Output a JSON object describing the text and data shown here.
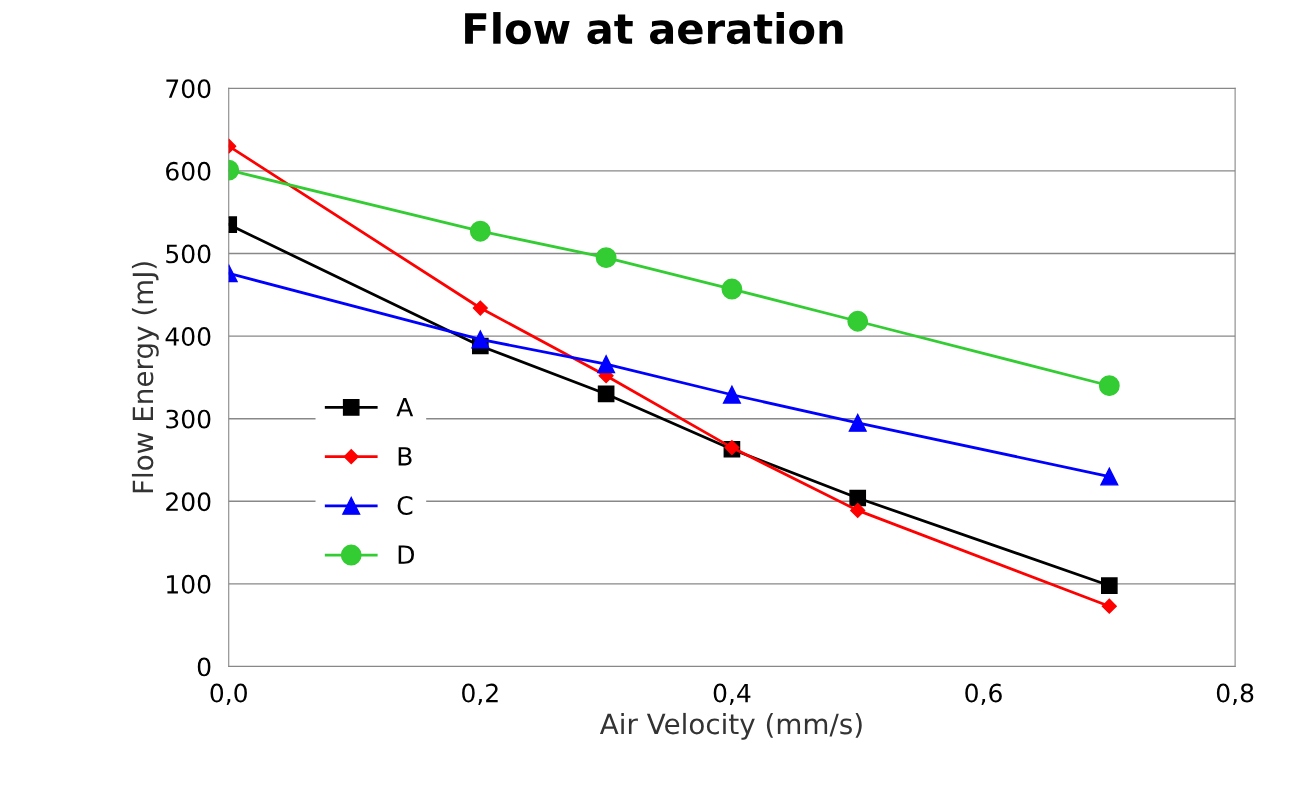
{
  "chart_data": {
    "type": "line",
    "title": "Flow at aeration",
    "xlabel": "Air Velocity (mm/s)",
    "ylabel": "Flow Energy (mJ)",
    "x": [
      0.0,
      0.2,
      0.3,
      0.4,
      0.5,
      0.7
    ],
    "series": [
      {
        "name": "A",
        "color": "#000000",
        "marker": "square",
        "values": [
          535,
          388,
          330,
          263,
          204,
          98
        ]
      },
      {
        "name": "B",
        "color": "#ff0000",
        "marker": "diamond",
        "values": [
          630,
          434,
          352,
          265,
          189,
          73
        ]
      },
      {
        "name": "C",
        "color": "#0000ff",
        "marker": "triangle",
        "values": [
          476,
          396,
          366,
          329,
          295,
          230
        ]
      },
      {
        "name": "D",
        "color": "#33cc33",
        "marker": "circle",
        "values": [
          601,
          527,
          495,
          457,
          418,
          340
        ]
      }
    ],
    "xlim": [
      0,
      0.8
    ],
    "xticks": [
      {
        "value": 0,
        "label": "0,0"
      },
      {
        "value": 0.2,
        "label": "0,2"
      },
      {
        "value": 0.4,
        "label": "0,4"
      },
      {
        "value": 0.6,
        "label": "0,6"
      },
      {
        "value": 0.8,
        "label": "0,8"
      }
    ],
    "ylim": [
      0,
      700
    ],
    "yticks": [
      0,
      100,
      200,
      300,
      400,
      500,
      600,
      700
    ],
    "grid": "y",
    "legend": "lower left",
    "line_style": "solid"
  }
}
